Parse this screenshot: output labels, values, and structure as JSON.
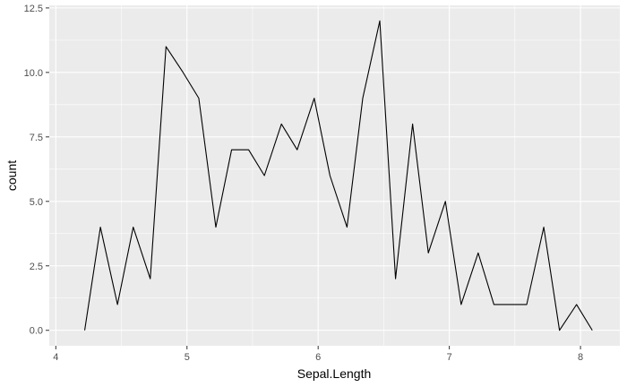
{
  "chart_data": {
    "type": "line",
    "xlabel": "Sepal.Length",
    "ylabel": "count",
    "xlim": [
      3.95,
      8.3
    ],
    "ylim": [
      -0.6,
      12.6
    ],
    "x_ticks": [
      4,
      5,
      6,
      7,
      8
    ],
    "x_tick_labels": [
      "4",
      "5",
      "6",
      "7",
      "8"
    ],
    "x_minor_ticks": [
      4.5,
      5.5,
      6.5,
      7.5
    ],
    "y_ticks": [
      0,
      2.5,
      5,
      7.5,
      10,
      12.5
    ],
    "y_tick_labels": [
      "0.0",
      "2.5",
      "5.0",
      "7.5",
      "10.0",
      "12.5"
    ],
    "y_minor_ticks": [
      1.25,
      3.75,
      6.25,
      8.75,
      11.25
    ],
    "grid": true,
    "colors": {
      "panel": "#ebebeb",
      "grid": "#ffffff",
      "line": "#000000",
      "tick_text": "#4d4d4d"
    },
    "series": [
      {
        "x": [
          4.22,
          4.34,
          4.47,
          4.59,
          4.72,
          4.84,
          4.97,
          5.09,
          5.22,
          5.34,
          5.47,
          5.59,
          5.72,
          5.84,
          5.97,
          6.09,
          6.22,
          6.34,
          6.47,
          6.59,
          6.72,
          6.84,
          6.97,
          7.09,
          7.22,
          7.34,
          7.47,
          7.59,
          7.72,
          7.84,
          7.97,
          8.09
        ],
        "values": [
          0,
          4,
          1,
          4,
          2,
          11,
          10,
          9,
          4,
          7,
          7,
          6,
          8,
          7,
          9,
          6,
          4,
          9,
          12,
          2,
          8,
          3,
          5,
          1,
          3,
          1,
          1,
          1,
          4,
          0,
          1,
          0
        ]
      }
    ]
  }
}
